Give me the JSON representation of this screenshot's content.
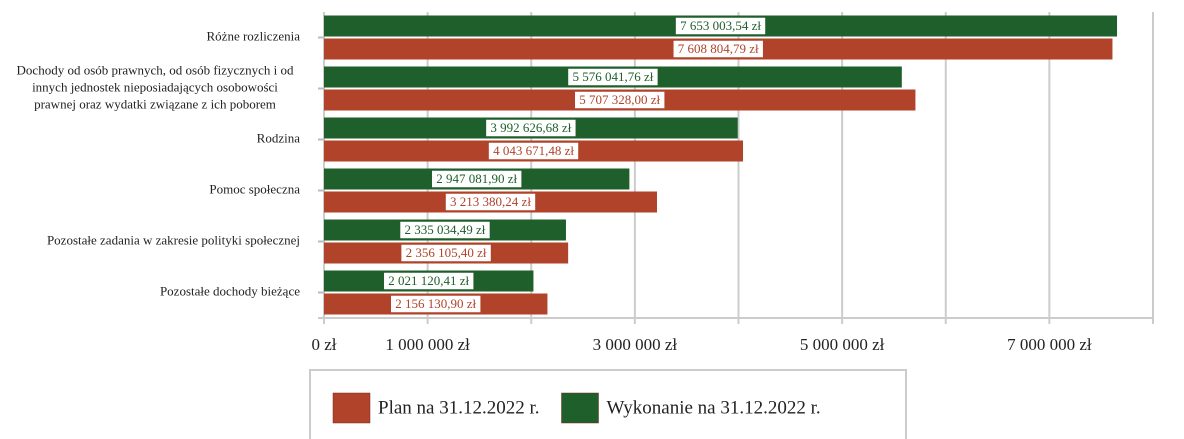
{
  "chart_data": {
    "type": "barh",
    "categories": [
      "Różne rozliczenia",
      "Dochody od osób prawnych, od osób fizycznych i od\ninnych jednostek nieposiadających osobowości\nprawnej oraz wydatki związane z ich poborem",
      "Rodzina",
      "Pomoc społeczna",
      "Pozostałe zadania w zakresie polityki społecznej",
      "Pozostałe dochody bieżące"
    ],
    "series": [
      {
        "name": "Plan na 31.12.2022 r.",
        "color": "#b0432a",
        "values": [
          7608804.79,
          5707328.0,
          4043671.48,
          3213380.24,
          2356105.4,
          2156130.9
        ],
        "value_labels": [
          "7 608 804,79 zł",
          "5 707 328,00 zł",
          "4 043 671,48 zł",
          "3 213 380,24 zł",
          "2 356 105,40 zł",
          "2 156 130,90 zł"
        ]
      },
      {
        "name": "Wykonanie na 31.12.2022 r.",
        "color": "#1f5f2b",
        "values": [
          7653003.54,
          5576041.76,
          3992626.68,
          2947081.9,
          2335034.49,
          2021120.41
        ],
        "value_labels": [
          "7 653 003,54 zł",
          "5 576 041,76 zł",
          "3 992 626,68 zł",
          "2 947 081,90 zł",
          "2 335 034,49 zł",
          "2 021 120,41 zł"
        ]
      }
    ],
    "xlim": [
      0,
      8000000
    ],
    "xticks": [
      {
        "value": 0,
        "label": "0 zł"
      },
      {
        "value": 1000000,
        "label": "1 000 000 zł"
      },
      {
        "value": 3000000,
        "label": "3 000 000 zł"
      },
      {
        "value": 5000000,
        "label": "5 000 000 zł"
      },
      {
        "value": 7000000,
        "label": "7 000 000 zł"
      }
    ],
    "minor_xticks": [
      2000000,
      4000000,
      6000000,
      8000000
    ],
    "grid": true,
    "legend": "bottom"
  }
}
